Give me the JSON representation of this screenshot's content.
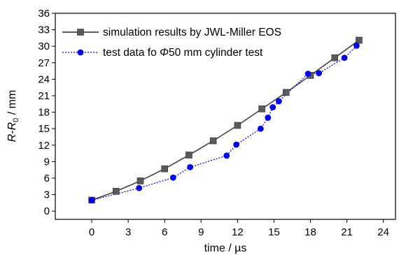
{
  "chart_data": {
    "type": "line",
    "xlabel": "time / µs",
    "ylabel_parts": {
      "a": "R",
      "dash": "-",
      "b": "R",
      "sub": "0",
      "unit": " / mm"
    },
    "xlim": [
      -3,
      25
    ],
    "ylim": [
      -1.5,
      36
    ],
    "x_ticks": [
      0,
      3,
      6,
      9,
      12,
      15,
      18,
      21,
      24
    ],
    "y_ticks": [
      0,
      3,
      6,
      9,
      12,
      15,
      18,
      21,
      24,
      27,
      30,
      33,
      36
    ],
    "legend_position": "top-left",
    "series": [
      {
        "name": "simulation results by JWL-Miller EOS",
        "color": "#444444",
        "line_style": "solid",
        "marker": "square",
        "x": [
          0,
          2,
          4,
          6,
          8,
          10,
          12,
          14,
          16,
          18,
          20,
          22
        ],
        "y": [
          2.0,
          3.6,
          5.5,
          7.7,
          10.2,
          12.8,
          15.6,
          18.6,
          21.6,
          24.7,
          27.9,
          31.1
        ]
      },
      {
        "name_parts": {
          "prefix": "test data fo ",
          "symbol": "Φ",
          "suffix": "50 mm cylinder test"
        },
        "color": "#0000ee",
        "line_style": "dotted",
        "marker": "circle",
        "x": [
          0,
          3.9,
          6.7,
          8.1,
          11.1,
          11.9,
          13.9,
          14.5,
          14.9,
          15.4,
          17.8,
          18.7,
          20.8,
          21.8
        ],
        "y": [
          2.0,
          4.2,
          6.1,
          8.0,
          10.1,
          12.1,
          15.0,
          17.0,
          18.9,
          20.0,
          25.0,
          25.1,
          27.9,
          30.1
        ]
      }
    ]
  }
}
